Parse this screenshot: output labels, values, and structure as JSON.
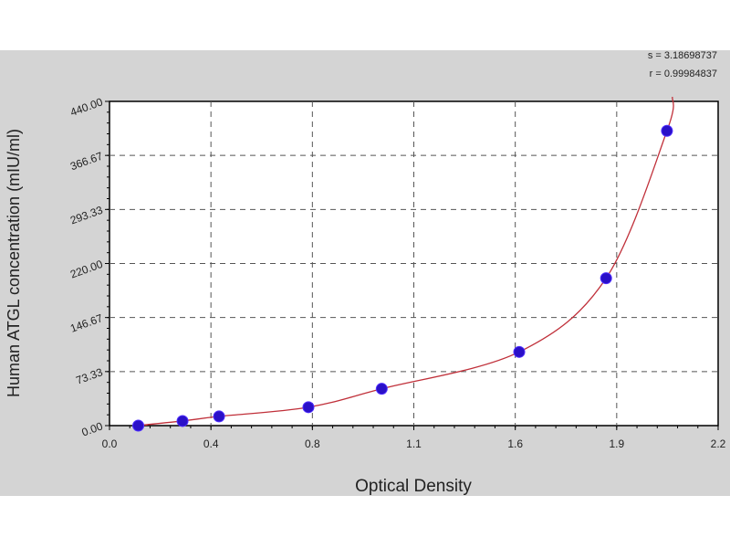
{
  "chart_data": {
    "type": "scatter",
    "xlabel": "Optical Density",
    "ylabel": "Human ATGL concentration (mIU/ml)",
    "xlim": [
      0,
      2.2
    ],
    "ylim": [
      0,
      440
    ],
    "x_ticks": [
      "0.0",
      "0.4",
      "0.8",
      "1.1",
      "1.6",
      "1.9",
      "2.2"
    ],
    "y_ticks": [
      "0.00",
      "73.33",
      "146.67",
      "220.00",
      "293.33",
      "366.67",
      "440.00"
    ],
    "grid": true,
    "fit_curve": true,
    "stats": [
      "s = 3.18698737",
      "r = 0.99984837"
    ],
    "points": [
      {
        "x": 0.104,
        "y": 0
      },
      {
        "x": 0.264,
        "y": 6.25
      },
      {
        "x": 0.396,
        "y": 12.5
      },
      {
        "x": 0.719,
        "y": 25
      },
      {
        "x": 0.984,
        "y": 50
      },
      {
        "x": 1.481,
        "y": 100
      },
      {
        "x": 1.795,
        "y": 200
      },
      {
        "x": 2.015,
        "y": 400
      }
    ],
    "colors": {
      "background": "#d4d4d4",
      "plot": "#ffffff",
      "point": "#2a10c8",
      "curve": "#c0303a",
      "grid": "#555555"
    }
  }
}
